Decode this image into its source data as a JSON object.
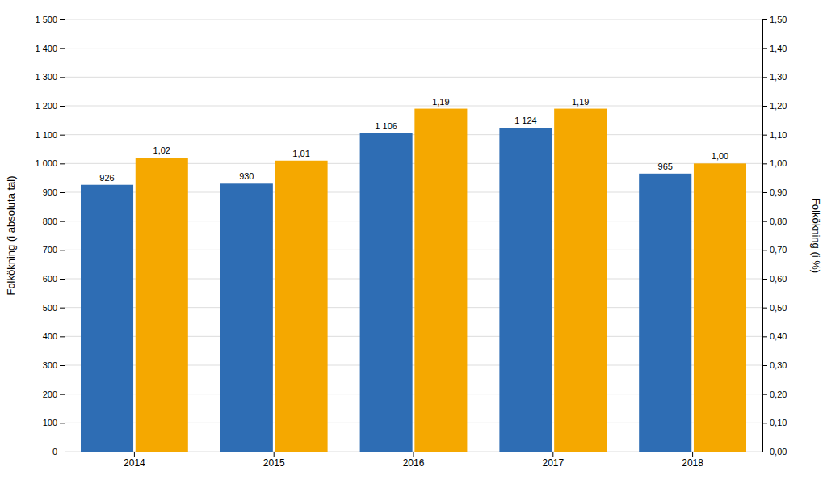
{
  "chart_data": {
    "type": "bar",
    "categories": [
      "2014",
      "2015",
      "2016",
      "2017",
      "2018"
    ],
    "series": [
      {
        "color": "#2E6DB4",
        "values": [
          926,
          930,
          1106,
          1124,
          965
        ],
        "value_labels": [
          "926",
          "930",
          "1 106",
          "1 124",
          "965"
        ]
      },
      {
        "color": "#F5A800",
        "axis": "y2",
        "values": [
          1.02,
          1.01,
          1.19,
          1.19,
          1.0
        ],
        "value_labels": [
          "1,02",
          "1,01",
          "1,19",
          "1,19",
          "1,00"
        ]
      }
    ],
    "ylabel": "Folkökning (i absoluta tal)",
    "y2label": "Folkökning (i %)",
    "ylim": [
      0,
      1500
    ],
    "yticks": [
      0,
      100,
      200,
      300,
      400,
      500,
      600,
      700,
      800,
      900,
      {
        "value": 1000,
        "label": "1 000"
      },
      {
        "value": 1100,
        "label": "1 100"
      },
      {
        "value": 1200,
        "label": "1 200"
      },
      {
        "value": 1300,
        "label": "1 300"
      },
      {
        "value": 1400,
        "label": "1 400"
      },
      {
        "value": 1500,
        "label": "1 500"
      }
    ],
    "y2lim": [
      0,
      1.5
    ],
    "y2ticks": [
      {
        "value": 0.0,
        "label": "0,00"
      },
      {
        "value": 0.1,
        "label": "0,10"
      },
      {
        "value": 0.2,
        "label": "0,20"
      },
      {
        "value": 0.3,
        "label": "0,30"
      },
      {
        "value": 0.4,
        "label": "0,40"
      },
      {
        "value": 0.5,
        "label": "0,50"
      },
      {
        "value": 0.6,
        "label": "0,60"
      },
      {
        "value": 0.7,
        "label": "0,70"
      },
      {
        "value": 0.8,
        "label": "0,80"
      },
      {
        "value": 0.9,
        "label": "0,90"
      },
      {
        "value": 1.0,
        "label": "1,00"
      },
      {
        "value": 1.1,
        "label": "1,10"
      },
      {
        "value": 1.2,
        "label": "1,20"
      },
      {
        "value": 1.3,
        "label": "1,30"
      },
      {
        "value": 1.4,
        "label": "1,40"
      },
      {
        "value": 1.5,
        "label": "1,50"
      }
    ],
    "grid": true,
    "data_labels": true
  }
}
